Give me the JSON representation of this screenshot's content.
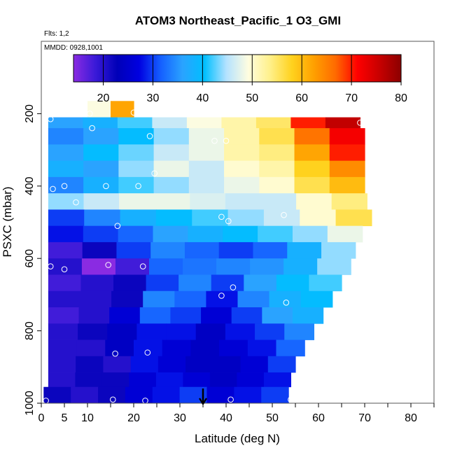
{
  "chart_data": {
    "type": "heatmap",
    "title": "ATOM3 Northeast_Pacific_1 O3_GMI",
    "notes": [
      "Flts: 1,2",
      "MMDD: 0928,1001"
    ],
    "xlabel": "Latitude (deg N)",
    "ylabel": "PSXC (mbar)",
    "xlim": [
      0,
      85
    ],
    "ylim": [
      1000,
      0
    ],
    "x_ticks": [
      0,
      5,
      10,
      20,
      30,
      40,
      50,
      60,
      70,
      80
    ],
    "y_ticks": [
      200,
      400,
      600,
      800,
      1000
    ],
    "colorbar": {
      "ticks": [
        20,
        30,
        40,
        50,
        60,
        70,
        80
      ],
      "range": [
        14,
        80
      ],
      "colors": [
        "#8a2be2",
        "#3a1ad8",
        "#0000b8",
        "#0000e0",
        "#1560ff",
        "#2aa3ff",
        "#00bfff",
        "#b4e2ff",
        "#fffde0",
        "#fff08a",
        "#ffd21e",
        "#ffa000",
        "#ff6a00",
        "#ff0000",
        "#c80000",
        "#8b0000"
      ]
    },
    "arrow_marker": {
      "x": 35
    },
    "layers": [
      {
        "p_top": 165,
        "p_bot": 210,
        "lat_min": 10,
        "lat_max": 20,
        "o3": [
          49,
          62
        ]
      },
      {
        "p_top": 210,
        "p_bot": 240,
        "lat_min": 1.5,
        "lat_max": 69,
        "o3": [
          36,
          38,
          42,
          46,
          49,
          52,
          55,
          70,
          76
        ]
      },
      {
        "p_top": 240,
        "p_bot": 285,
        "lat_min": 1.5,
        "lat_max": 70,
        "o3": [
          34,
          36,
          40,
          44,
          48,
          52,
          56,
          66,
          72
        ]
      },
      {
        "p_top": 285,
        "p_bot": 330,
        "lat_min": 1.5,
        "lat_max": 70,
        "o3": [
          36,
          40,
          43,
          46,
          48,
          52,
          54,
          62,
          70
        ]
      },
      {
        "p_top": 330,
        "p_bot": 375,
        "lat_min": 1.5,
        "lat_max": 70,
        "o3": [
          38,
          36,
          44,
          48,
          46,
          50,
          52,
          58,
          64
        ]
      },
      {
        "p_top": 375,
        "p_bot": 420,
        "lat_min": 1.5,
        "lat_max": 70,
        "o3": [
          34,
          38,
          42,
          44,
          46,
          48,
          50,
          56,
          60
        ]
      },
      {
        "p_top": 420,
        "p_bot": 465,
        "lat_min": 1.5,
        "lat_max": 70.5,
        "o3": [
          44,
          46,
          48,
          48,
          47,
          46,
          46,
          50,
          54
        ]
      },
      {
        "p_top": 465,
        "p_bot": 510,
        "lat_min": 1.5,
        "lat_max": 71.5,
        "o3": [
          30,
          34,
          38,
          40,
          42,
          44,
          46,
          50,
          56
        ]
      },
      {
        "p_top": 510,
        "p_bot": 555,
        "lat_min": 1.5,
        "lat_max": 69.5,
        "o3": [
          28,
          30,
          32,
          36,
          38,
          40,
          42,
          44,
          48
        ]
      },
      {
        "p_top": 555,
        "p_bot": 600,
        "lat_min": 1.5,
        "lat_max": 68,
        "o3": [
          18,
          22,
          30,
          34,
          32,
          30,
          32,
          38,
          44
        ]
      },
      {
        "p_top": 600,
        "p_bot": 645,
        "lat_min": 1.5,
        "lat_max": 67,
        "o3": [
          20,
          14,
          18,
          32,
          33,
          34,
          35,
          38,
          44
        ]
      },
      {
        "p_top": 645,
        "p_bot": 690,
        "lat_min": 1.5,
        "lat_max": 65,
        "o3": [
          18,
          20,
          22,
          30,
          34,
          30,
          36,
          40,
          42
        ]
      },
      {
        "p_top": 690,
        "p_bot": 735,
        "lat_min": 1.5,
        "lat_max": 63,
        "o3": [
          20,
          20,
          22,
          34,
          32,
          28,
          34,
          38,
          40
        ]
      },
      {
        "p_top": 735,
        "p_bot": 780,
        "lat_min": 1.5,
        "lat_max": 61,
        "o3": [
          18,
          20,
          26,
          32,
          30,
          26,
          30,
          36,
          38
        ]
      },
      {
        "p_top": 780,
        "p_bot": 825,
        "lat_min": 1.5,
        "lat_max": 59,
        "o3": [
          20,
          22,
          24,
          28,
          28,
          24,
          28,
          30,
          34
        ]
      },
      {
        "p_top": 825,
        "p_bot": 870,
        "lat_min": 1.5,
        "lat_max": 57,
        "o3": [
          20,
          20,
          24,
          28,
          26,
          24,
          26,
          28,
          32
        ]
      },
      {
        "p_top": 870,
        "p_bot": 915,
        "lat_min": 1.5,
        "lat_max": 55,
        "o3": [
          20,
          22,
          20,
          28,
          26,
          24,
          24,
          26,
          30
        ]
      },
      {
        "p_top": 915,
        "p_bot": 955,
        "lat_min": 1.5,
        "lat_max": 54,
        "o3": [
          20,
          22,
          22,
          26,
          28,
          26,
          24,
          26,
          28
        ]
      },
      {
        "p_top": 955,
        "p_bot": 1000,
        "lat_min": 0.5,
        "lat_max": 53.5,
        "o3": [
          22,
          20,
          22,
          26,
          28,
          30,
          26,
          28,
          30
        ]
      }
    ],
    "flight_points": [
      {
        "lat": 2,
        "p": 215
      },
      {
        "lat": 10.5,
        "p": 200
      },
      {
        "lat": 11,
        "p": 240
      },
      {
        "lat": 20,
        "p": 197
      },
      {
        "lat": 23.5,
        "p": 262
      },
      {
        "lat": 37.5,
        "p": 275
      },
      {
        "lat": 40,
        "p": 275
      },
      {
        "lat": 69,
        "p": 225
      },
      {
        "lat": 24.5,
        "p": 365
      },
      {
        "lat": 2.5,
        "p": 408
      },
      {
        "lat": 5,
        "p": 400
      },
      {
        "lat": 7.5,
        "p": 445
      },
      {
        "lat": 14,
        "p": 400
      },
      {
        "lat": 21,
        "p": 400
      },
      {
        "lat": 16.5,
        "p": 510
      },
      {
        "lat": 39,
        "p": 485
      },
      {
        "lat": 40.5,
        "p": 497
      },
      {
        "lat": 52.5,
        "p": 480
      },
      {
        "lat": 0,
        "p": 508
      },
      {
        "lat": 2,
        "p": 622
      },
      {
        "lat": 5,
        "p": 630
      },
      {
        "lat": 14.5,
        "p": 618
      },
      {
        "lat": 22,
        "p": 622
      },
      {
        "lat": 41.5,
        "p": 680
      },
      {
        "lat": 39,
        "p": 703
      },
      {
        "lat": 53,
        "p": 722
      },
      {
        "lat": 16,
        "p": 863
      },
      {
        "lat": 23,
        "p": 860
      },
      {
        "lat": 1,
        "p": 993
      },
      {
        "lat": 15.5,
        "p": 990
      },
      {
        "lat": 22.5,
        "p": 993
      },
      {
        "lat": 41,
        "p": 990
      },
      {
        "lat": 54,
        "p": 990
      }
    ]
  }
}
